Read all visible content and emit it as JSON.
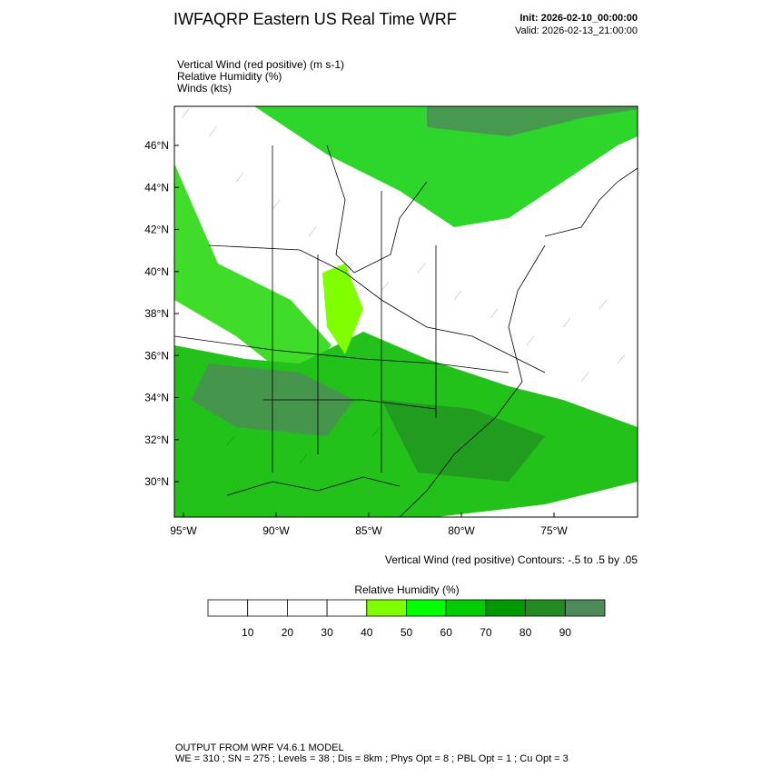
{
  "header": {
    "title": "IWFAQRP Eastern US Real Time WRF",
    "init": "Init: 2026-02-10_00:00:00",
    "valid": "Valid: 2026-02-13_21:00:00"
  },
  "fields": [
    "Vertical Wind (red positive)   (m s-1)",
    "Relative Humidity   (%)",
    "Winds   (kts)"
  ],
  "lat_labels": [
    "46°N",
    "44°N",
    "42°N",
    "40°N",
    "38°N",
    "36°N",
    "34°N",
    "32°N",
    "30°N"
  ],
  "lon_labels": [
    "95°W",
    "90°W",
    "85°W",
    "80°W",
    "75°W"
  ],
  "contour_note": "Vertical Wind (red positive) Contours: -.5 to .5 by .05",
  "colorbar": {
    "title": "Relative Humidity  (%)",
    "labels": [
      "10",
      "20",
      "30",
      "40",
      "50",
      "60",
      "70",
      "80",
      "90"
    ],
    "colors": [
      "#ffffff",
      "#ffffff",
      "#ffffff",
      "#ffffff",
      "#80ff00",
      "#00ff00",
      "#00cc00",
      "#009900",
      "#228b22",
      "#4f8a5a"
    ]
  },
  "footer": {
    "line1": "OUTPUT FROM WRF V4.6.1 MODEL",
    "line2": "WE = 310 ; SN = 275 ; Levels = 38 ; Dis = 8km ; Phys Opt = 8 ; PBL Opt = 1 ; Cu Opt = 3"
  }
}
